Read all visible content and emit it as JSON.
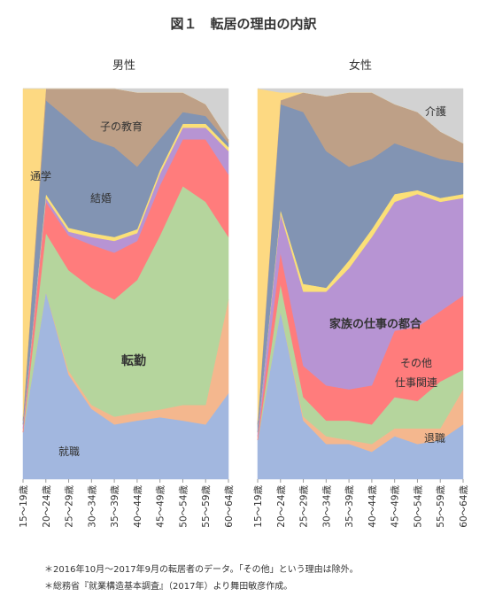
{
  "figure_title": "図１　転居の理由の内訳",
  "age_groups": [
    "15～19歳",
    "20～24歳",
    "25～29歳",
    "30～34歳",
    "35～39歳",
    "40～44歳",
    "45～49歳",
    "50～54歳",
    "55～59歳",
    "60～64歳"
  ],
  "footnotes": [
    "＊2016年10月～2017年9月の転居者のデータ。「その他」という理由は除外。",
    "＊総務省『就業構造基本調査』（2017年）より舞田敏彦作成。"
  ],
  "chart_data": [
    {
      "type": "area",
      "stacked": true,
      "normalized": true,
      "title": "男性",
      "x": [
        "15～19歳",
        "20～24歳",
        "25～29歳",
        "30～34歳",
        "35～39歳",
        "40～44歳",
        "45～49歳",
        "50～54歳",
        "55～59歳",
        "60～64歳"
      ],
      "ylim": [
        0,
        100
      ],
      "series": [
        {
          "name": "就職",
          "color": "#a2b7df",
          "values": [
            12,
            48,
            27,
            18,
            14,
            15,
            16,
            15,
            14,
            22
          ]
        },
        {
          "name": "退職",
          "color": "#f4b78e",
          "values": [
            0,
            0,
            1,
            1,
            2,
            2,
            2,
            4,
            5,
            24
          ]
        },
        {
          "name": "転勤",
          "color": "#b5d59d",
          "values": [
            0,
            15,
            26,
            30,
            30,
            34,
            45,
            56,
            52,
            16
          ]
        },
        {
          "name": "その他仕事関連",
          "color": "#ff7c7c",
          "values": [
            1,
            8,
            9,
            11,
            12,
            10,
            13,
            12,
            16,
            16
          ]
        },
        {
          "name": "家族の仕事の都合",
          "color": "#b794d3",
          "values": [
            1,
            1,
            1,
            2,
            3,
            2,
            3,
            3,
            3,
            6
          ]
        },
        {
          "name": "",
          "color": "#fbe077",
          "values": [
            0,
            1,
            1,
            1,
            1,
            1,
            1,
            1,
            1,
            1
          ]
        },
        {
          "name": "結婚",
          "color": "#8294b3",
          "values": [
            1,
            24,
            28,
            24,
            23,
            16,
            8,
            3,
            2,
            1
          ]
        },
        {
          "name": "子の教育",
          "color": "#bea087",
          "values": [
            1,
            3,
            8,
            13,
            15,
            19,
            12,
            5,
            3,
            1
          ]
        },
        {
          "name": "通学",
          "color": "#fdd982",
          "values": [
            84,
            0,
            0,
            0,
            0,
            0,
            0,
            0,
            0,
            0
          ]
        },
        {
          "name": "介護",
          "color": "#d2d2d2",
          "values": [
            0,
            0,
            0,
            0,
            0,
            1,
            1,
            1,
            4,
            13
          ]
        }
      ],
      "labels": [
        "子の教育",
        "通学",
        "結婚",
        "転勤",
        "就職"
      ]
    },
    {
      "type": "area",
      "stacked": true,
      "normalized": true,
      "title": "女性",
      "x": [
        "15～19歳",
        "20～24歳",
        "25～29歳",
        "30～34歳",
        "35～39歳",
        "40～44歳",
        "45～49歳",
        "50～54歳",
        "55～59歳",
        "60～64歳"
      ],
      "ylim": [
        0,
        100
      ],
      "series": [
        {
          "name": "就職",
          "color": "#a2b7df",
          "values": [
            10,
            43,
            15,
            9,
            9,
            7,
            11,
            9,
            10,
            14
          ]
        },
        {
          "name": "退職",
          "color": "#f4b78e",
          "values": [
            0,
            0,
            1,
            2,
            1,
            2,
            2,
            4,
            3,
            9
          ]
        },
        {
          "name": "転勤",
          "color": "#b5d59d",
          "values": [
            0,
            7,
            5,
            4,
            5,
            5,
            8,
            7,
            12,
            5
          ]
        },
        {
          "name": "その他仕事関連",
          "color": "#ff7c7c",
          "values": [
            1,
            8,
            8,
            9,
            8,
            10,
            17,
            19,
            18,
            19
          ]
        },
        {
          "name": "家族の仕事の都合",
          "color": "#b794d3",
          "values": [
            1,
            10,
            19,
            24,
            31,
            38,
            33,
            34,
            28,
            25
          ]
        },
        {
          "name": "",
          "color": "#fbe077",
          "values": [
            0,
            1,
            2,
            1,
            2,
            2,
            2,
            1,
            1,
            1
          ]
        },
        {
          "name": "結婚",
          "color": "#8294b3",
          "values": [
            2,
            27,
            44,
            35,
            24,
            18,
            13,
            10,
            10,
            8
          ]
        },
        {
          "name": "子の教育",
          "color": "#bea087",
          "values": [
            1,
            1,
            5,
            14,
            19,
            17,
            10,
            10,
            7,
            5
          ]
        },
        {
          "name": "通学",
          "color": "#fdd982",
          "values": [
            85,
            2,
            0,
            0,
            0,
            0,
            0,
            0,
            0,
            0
          ]
        },
        {
          "name": "介護",
          "color": "#d2d2d2",
          "values": [
            0,
            1,
            1,
            2,
            1,
            1,
            4,
            6,
            11,
            14
          ]
        }
      ],
      "labels": [
        "介護",
        "家族の仕事の都合",
        "その他",
        "仕事関連",
        "退職"
      ]
    }
  ]
}
